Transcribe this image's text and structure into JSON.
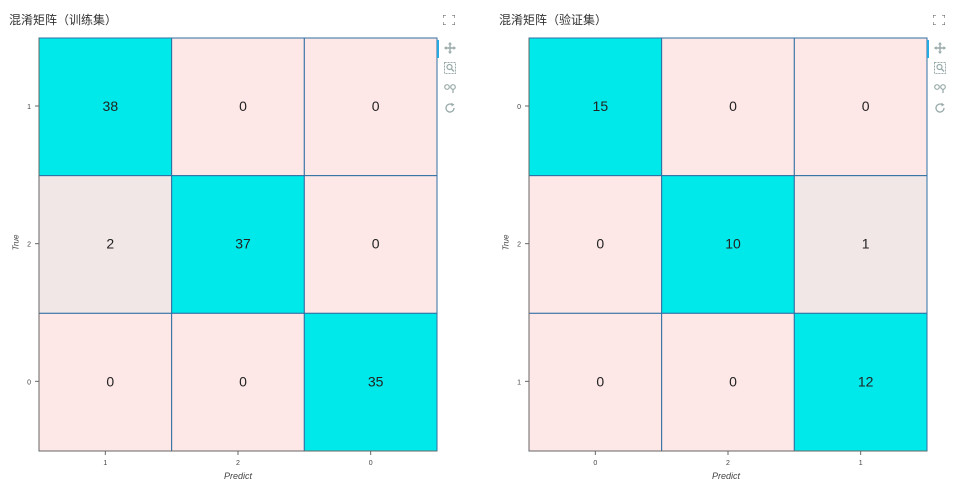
{
  "panels": [
    {
      "title": "混淆矩阵（训练集）",
      "tools": [
        "pan-icon",
        "box-zoom-icon",
        "wheel-zoom-icon",
        "reset-icon"
      ]
    },
    {
      "title": "混淆矩阵（验证集）",
      "tools": [
        "pan-icon",
        "box-zoom-icon",
        "wheel-zoom-icon",
        "reset-icon"
      ]
    }
  ],
  "colors": {
    "diagonal": "#00e9ea",
    "zero": "#fde7e7",
    "low": "#f1e7e7",
    "grid": "#2f6fa3",
    "active_tool": "#26aae1"
  },
  "chart_data": [
    {
      "type": "heatmap",
      "title": "混淆矩阵（训练集）",
      "xlabel": "Predict",
      "ylabel": "True",
      "x_categories": [
        "1",
        "2",
        "0"
      ],
      "y_categories": [
        "1",
        "2",
        "0"
      ],
      "values": [
        [
          38,
          0,
          0
        ],
        [
          2,
          37,
          0
        ],
        [
          0,
          0,
          35
        ]
      ]
    },
    {
      "type": "heatmap",
      "title": "混淆矩阵（验证集）",
      "xlabel": "Predict",
      "ylabel": "True",
      "x_categories": [
        "0",
        "2",
        "1"
      ],
      "y_categories": [
        "0",
        "2",
        "1"
      ],
      "values": [
        [
          15,
          0,
          0
        ],
        [
          0,
          10,
          1
        ],
        [
          0,
          0,
          12
        ]
      ]
    }
  ]
}
